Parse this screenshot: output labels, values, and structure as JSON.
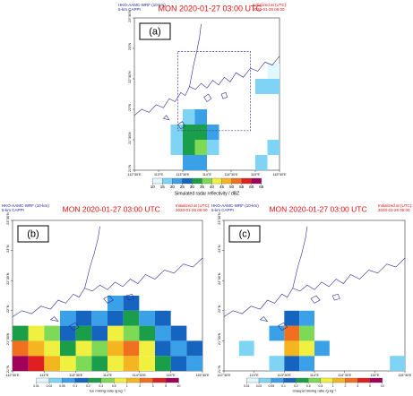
{
  "panels": [
    {
      "type": "grid-map",
      "model": "HKO-AAMC-WRF (10-km)",
      "product": "5-km CAPPI",
      "title": "MON 2020-01-27 03:00 UTC",
      "init_label": "Initialized at (UTC):",
      "init_time": "2020-01-26 06:00",
      "label": "(a)",
      "xlim": [
        112.5,
        115.5
      ],
      "ylim": [
        21,
        23.5
      ],
      "xticks": [
        {
          "value": 112.5,
          "label": "112°30'E"
        },
        {
          "value": 113,
          "label": "113°E"
        },
        {
          "value": 113.5,
          "label": "113°30'E"
        },
        {
          "value": 114,
          "label": "114°E"
        },
        {
          "value": 114.5,
          "label": "114°30'E"
        },
        {
          "value": 115,
          "label": "115°E"
        },
        {
          "value": 115.5,
          "label": "115°30'E"
        }
      ],
      "yticks": [
        {
          "value": 21,
          "label": "21°N"
        },
        {
          "value": 21.5,
          "label": "21°30'N"
        },
        {
          "value": 22,
          "label": "22°N"
        },
        {
          "value": 22.5,
          "label": "22°30'N"
        },
        {
          "value": 23,
          "label": "23°N"
        },
        {
          "value": 23.5,
          "label": "23°30'N"
        }
      ],
      "colorbar_title": "Simulated radar reflectivity / dBZ",
      "colorbar_ticks": [
        10,
        15,
        20,
        25,
        30,
        35,
        40,
        45,
        50,
        55,
        60,
        65
      ],
      "colors": [
        "#e0f7ff",
        "#7fd4f5",
        "#3aa0e8",
        "#1565c0",
        "#1b9e4a",
        "#7ed957",
        "#f0f040",
        "#f5b520",
        "#f07020",
        "#e02020",
        "#a0005a"
      ],
      "cells": [
        {
          "lon": 113.5,
          "lat": 21.0,
          "value": 20
        },
        {
          "lon": 113.75,
          "lat": 21.0,
          "value": 20
        },
        {
          "lon": 113.25,
          "lat": 21.25,
          "value": 15
        },
        {
          "lon": 113.5,
          "lat": 21.25,
          "value": 30
        },
        {
          "lon": 113.75,
          "lat": 21.25,
          "value": 35
        },
        {
          "lon": 114,
          "lat": 21.25,
          "value": 15
        },
        {
          "lon": 113.25,
          "lat": 21.5,
          "value": 15
        },
        {
          "lon": 113.5,
          "lat": 21.5,
          "value": 30
        },
        {
          "lon": 113.75,
          "lat": 21.5,
          "value": 30
        },
        {
          "lon": 114,
          "lat": 21.5,
          "value": 20
        },
        {
          "lon": 113.5,
          "lat": 21.75,
          "value": 15
        },
        {
          "lon": 113.75,
          "lat": 21.75,
          "value": 20
        },
        {
          "lon": 115,
          "lat": 21.0,
          "value": 15
        },
        {
          "lon": 115.25,
          "lat": 21.25,
          "value": 15
        },
        {
          "lon": 115,
          "lat": 22.25,
          "value": 15
        },
        {
          "lon": 115.25,
          "lat": 22.25,
          "value": 15
        },
        {
          "lon": 115.25,
          "lat": 22.5,
          "value": 10
        }
      ]
    },
    {
      "type": "grid-map",
      "model": "HKO-AAMC-WRF (10-km)",
      "product": "5-km CAPPI",
      "title": "MON 2020-01-27 03:00 UTC",
      "init_label": "Initialized at (UTC):",
      "init_time": "2020-01-26 06:00",
      "label": "(b)",
      "xlim": [
        112.5,
        115.5
      ],
      "ylim": [
        21,
        23.5
      ],
      "xticks": [
        {
          "value": 112.5,
          "label": "112°30'E"
        },
        {
          "value": 113,
          "label": "113°E"
        },
        {
          "value": 113.5,
          "label": "113°30'E"
        },
        {
          "value": 114,
          "label": "114°E"
        },
        {
          "value": 114.5,
          "label": "114°30'E"
        },
        {
          "value": 115,
          "label": "115°E"
        },
        {
          "value": 115.5,
          "label": "115°30'E"
        }
      ],
      "yticks": [
        {
          "value": 21,
          "label": "21°N"
        },
        {
          "value": 21.5,
          "label": "21°30'N"
        },
        {
          "value": 22,
          "label": "22°N"
        },
        {
          "value": 22.5,
          "label": "22°30'N"
        },
        {
          "value": 23,
          "label": "23°N"
        },
        {
          "value": 23.5,
          "label": "23°30'N"
        }
      ],
      "colorbar_title": "Ice mixing ratio /g kg⁻¹",
      "colorbar_ticks": [
        0.01,
        0.02,
        0.05,
        0.1,
        0.2,
        0.3,
        0.5,
        1,
        2,
        3,
        5,
        10
      ],
      "colors": [
        "#e0f7ff",
        "#7fd4f5",
        "#3aa0e8",
        "#1565c0",
        "#1b9e4a",
        "#7ed957",
        "#f0f040",
        "#f5b520",
        "#f07020",
        "#e02020",
        "#a0005a"
      ],
      "cells": [
        {
          "lon": 112.5,
          "lat": 21.0,
          "value": 5
        },
        {
          "lon": 112.75,
          "lat": 21.0,
          "value": 3
        },
        {
          "lon": 113,
          "lat": 21.0,
          "value": 1
        },
        {
          "lon": 113.25,
          "lat": 21.0,
          "value": 0.5
        },
        {
          "lon": 113.5,
          "lat": 21.0,
          "value": 0.3
        },
        {
          "lon": 113.75,
          "lat": 21.0,
          "value": 0.2
        },
        {
          "lon": 114,
          "lat": 21.0,
          "value": 0.5
        },
        {
          "lon": 114.25,
          "lat": 21.0,
          "value": 1
        },
        {
          "lon": 114.5,
          "lat": 21.0,
          "value": 0.5
        },
        {
          "lon": 114.75,
          "lat": 21.0,
          "value": 0.2
        },
        {
          "lon": 115,
          "lat": 21.0,
          "value": 0.1
        },
        {
          "lon": 115.25,
          "lat": 21.0,
          "value": 0.05
        },
        {
          "lon": 112.5,
          "lat": 21.25,
          "value": 2
        },
        {
          "lon": 112.75,
          "lat": 21.25,
          "value": 1
        },
        {
          "lon": 113,
          "lat": 21.25,
          "value": 0.5
        },
        {
          "lon": 113.25,
          "lat": 21.25,
          "value": 0.2
        },
        {
          "lon": 113.5,
          "lat": 21.25,
          "value": 0.5
        },
        {
          "lon": 113.75,
          "lat": 21.25,
          "value": 0.3
        },
        {
          "lon": 114,
          "lat": 21.25,
          "value": 1
        },
        {
          "lon": 114.25,
          "lat": 21.25,
          "value": 2
        },
        {
          "lon": 114.5,
          "lat": 21.25,
          "value": 0.5
        },
        {
          "lon": 114.75,
          "lat": 21.25,
          "value": 0.1
        },
        {
          "lon": 115,
          "lat": 21.25,
          "value": 0.05
        },
        {
          "lon": 115.25,
          "lat": 21.25,
          "value": 0.1
        },
        {
          "lon": 112.5,
          "lat": 21.5,
          "value": 0.2
        },
        {
          "lon": 112.75,
          "lat": 21.5,
          "value": 0.5
        },
        {
          "lon": 113,
          "lat": 21.5,
          "value": 0.3
        },
        {
          "lon": 113.25,
          "lat": 21.5,
          "value": 0.1
        },
        {
          "lon": 113.5,
          "lat": 21.5,
          "value": 0.2
        },
        {
          "lon": 113.75,
          "lat": 21.5,
          "value": 0.1
        },
        {
          "lon": 114,
          "lat": 21.5,
          "value": 0.5
        },
        {
          "lon": 114.25,
          "lat": 21.5,
          "value": 0.3
        },
        {
          "lon": 114.5,
          "lat": 21.5,
          "value": 0.2
        },
        {
          "lon": 114.75,
          "lat": 21.5,
          "value": 0.05
        },
        {
          "lon": 115,
          "lat": 21.5,
          "value": 0.1
        },
        {
          "lon": 113.25,
          "lat": 21.75,
          "value": 0.05
        },
        {
          "lon": 113.5,
          "lat": 21.75,
          "value": 0.1
        },
        {
          "lon": 113.75,
          "lat": 21.75,
          "value": 0.05
        },
        {
          "lon": 114,
          "lat": 21.75,
          "value": 0.1
        },
        {
          "lon": 114.25,
          "lat": 21.75,
          "value": 0.2
        },
        {
          "lon": 114.5,
          "lat": 21.75,
          "value": 0.05
        },
        {
          "lon": 114.75,
          "lat": 21.75,
          "value": 0.1
        },
        {
          "lon": 114,
          "lat": 22.0,
          "value": 0.05
        },
        {
          "lon": 114.25,
          "lat": 22.0,
          "value": 0.1
        }
      ]
    },
    {
      "type": "grid-map",
      "model": "HKO-AAMC-WRF (10-km)",
      "product": "5-km CAPPI",
      "title": "MON 2020-01-27 03:00 UTC",
      "init_label": "Initialized at (UTC):",
      "init_time": "2020-01-26 06:00",
      "label": "(c)",
      "xlim": [
        112.5,
        115.5
      ],
      "ylim": [
        21,
        23.5
      ],
      "xticks": [
        {
          "value": 112.5,
          "label": "112°30'E"
        },
        {
          "value": 113,
          "label": "113°E"
        },
        {
          "value": 113.5,
          "label": "113°30'E"
        },
        {
          "value": 114,
          "label": "114°E"
        },
        {
          "value": 114.5,
          "label": "114°30'E"
        },
        {
          "value": 115,
          "label": "115°E"
        },
        {
          "value": 115.5,
          "label": "115°30'E"
        }
      ],
      "yticks": [
        {
          "value": 21,
          "label": "21°N"
        },
        {
          "value": 21.5,
          "label": "21°30'N"
        },
        {
          "value": 22,
          "label": "22°N"
        },
        {
          "value": 22.5,
          "label": "22°30'N"
        },
        {
          "value": 23,
          "label": "23°N"
        },
        {
          "value": 23.5,
          "label": "23°30'N"
        }
      ],
      "colorbar_title": "Graupel mixing ratio /g kg⁻¹",
      "colorbar_ticks": [
        0.01,
        0.02,
        0.05,
        0.1,
        0.2,
        0.3,
        0.5,
        1,
        2,
        3,
        5,
        10
      ],
      "colors": [
        "#e0f7ff",
        "#7fd4f5",
        "#3aa0e8",
        "#1565c0",
        "#1b9e4a",
        "#7ed957",
        "#f0f040",
        "#f5b520",
        "#f07020",
        "#e02020",
        "#a0005a"
      ],
      "cells": [
        {
          "lon": 113.25,
          "lat": 21.0,
          "value": 0.02
        },
        {
          "lon": 113.5,
          "lat": 21.0,
          "value": 0.1
        },
        {
          "lon": 113.75,
          "lat": 21.0,
          "value": 0.05
        },
        {
          "lon": 112.75,
          "lat": 21.25,
          "value": 0.02
        },
        {
          "lon": 113.5,
          "lat": 21.25,
          "value": 1
        },
        {
          "lon": 113.75,
          "lat": 21.25,
          "value": 0.5
        },
        {
          "lon": 114,
          "lat": 21.25,
          "value": 0.05
        },
        {
          "lon": 113.25,
          "lat": 21.5,
          "value": 0.05
        },
        {
          "lon": 113.5,
          "lat": 21.5,
          "value": 2
        },
        {
          "lon": 113.75,
          "lat": 21.5,
          "value": 0.3
        },
        {
          "lon": 113.5,
          "lat": 21.75,
          "value": 0.1
        },
        {
          "lon": 113.75,
          "lat": 21.75,
          "value": 0.05
        },
        {
          "lon": 115.25,
          "lat": 21.0,
          "value": 0.02
        }
      ]
    }
  ]
}
